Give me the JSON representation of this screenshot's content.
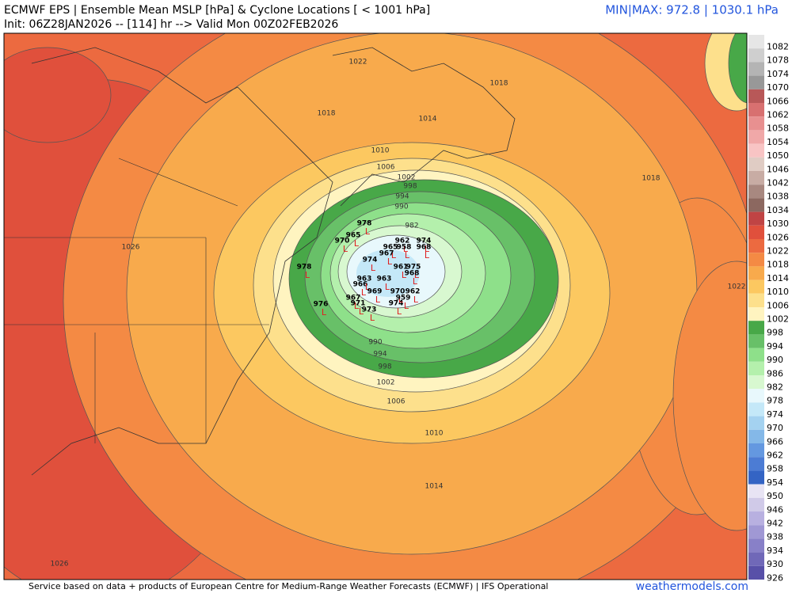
{
  "header": {
    "title": "ECMWF EPS | Ensemble Mean MSLP [hPa] & Cyclone Locations [ < 1001 hPa]",
    "subtitle": "Init: 06Z28JAN2026 -- [114] hr --> Valid Mon 00Z02FEB2026",
    "minmax": "MIN|MAX: 972.8 | 1030.1 hPa"
  },
  "footer": {
    "credit": "Service based on data + products of European Centre for Medium-Range Weather Forecasts (ECMWF) | IFS Operational",
    "site": "weathermodels.com"
  },
  "colorbar": [
    {
      "label": "1082",
      "color": "#e6e6e6"
    },
    {
      "label": "1078",
      "color": "#cfcfcf"
    },
    {
      "label": "1074",
      "color": "#b4b4b4"
    },
    {
      "label": "1070",
      "color": "#989898"
    },
    {
      "label": "1066",
      "color": "#b85858"
    },
    {
      "label": "1062",
      "color": "#d87070"
    },
    {
      "label": "1058",
      "color": "#e89090"
    },
    {
      "label": "1054",
      "color": "#f0a8a8"
    },
    {
      "label": "1050",
      "color": "#f8c4c4"
    },
    {
      "label": "1046",
      "color": "#e0ccc4"
    },
    {
      "label": "1042",
      "color": "#c8aca4"
    },
    {
      "label": "1038",
      "color": "#a88880"
    },
    {
      "label": "1034",
      "color": "#8c6860"
    },
    {
      "label": "1030",
      "color": "#c04444"
    },
    {
      "label": "1026",
      "color": "#e0503c"
    },
    {
      "label": "1022",
      "color": "#ec6a40"
    },
    {
      "label": "1018",
      "color": "#f48a44"
    },
    {
      "label": "1014",
      "color": "#f8aa4c"
    },
    {
      "label": "1010",
      "color": "#fcc860"
    },
    {
      "label": "1006",
      "color": "#fde08c"
    },
    {
      "label": "1002",
      "color": "#fff4c0"
    },
    {
      "label": "998",
      "color": "#48a848"
    },
    {
      "label": "994",
      "color": "#68c068"
    },
    {
      "label": "990",
      "color": "#8ee08a"
    },
    {
      "label": "986",
      "color": "#b4f0ac"
    },
    {
      "label": "982",
      "color": "#d8f8d0"
    },
    {
      "label": "978",
      "color": "#e8f8fc"
    },
    {
      "label": "974",
      "color": "#c4e8f8"
    },
    {
      "label": "970",
      "color": "#a4d2f0"
    },
    {
      "label": "966",
      "color": "#84b8e8"
    },
    {
      "label": "962",
      "color": "#6498e0"
    },
    {
      "label": "958",
      "color": "#4c7cd4"
    },
    {
      "label": "954",
      "color": "#3464c4"
    },
    {
      "label": "950",
      "color": "#e8e4f4"
    },
    {
      "label": "946",
      "color": "#d0cae8"
    },
    {
      "label": "942",
      "color": "#b8b0e0"
    },
    {
      "label": "938",
      "color": "#a098d4"
    },
    {
      "label": "934",
      "color": "#8880c8"
    },
    {
      "label": "930",
      "color": "#7068b8"
    },
    {
      "label": "926",
      "color": "#5850a8"
    }
  ],
  "contour_labels": [
    "1022",
    "1018",
    "1018",
    "1014",
    "1010",
    "1006",
    "1002",
    "998",
    "994",
    "990",
    "982",
    "1018",
    "1022",
    "1026",
    "990",
    "994",
    "998",
    "1002",
    "1006",
    "1010",
    "1014",
    "1026"
  ],
  "cyclones": {
    "marker": "L",
    "values": [
      "978",
      "965",
      "970",
      "978",
      "976",
      "962",
      "974",
      "965",
      "958",
      "968",
      "974",
      "967",
      "961",
      "975",
      "968",
      "966",
      "963",
      "967",
      "971",
      "973",
      "974",
      "962",
      "970",
      "959",
      "969",
      "963"
    ]
  }
}
